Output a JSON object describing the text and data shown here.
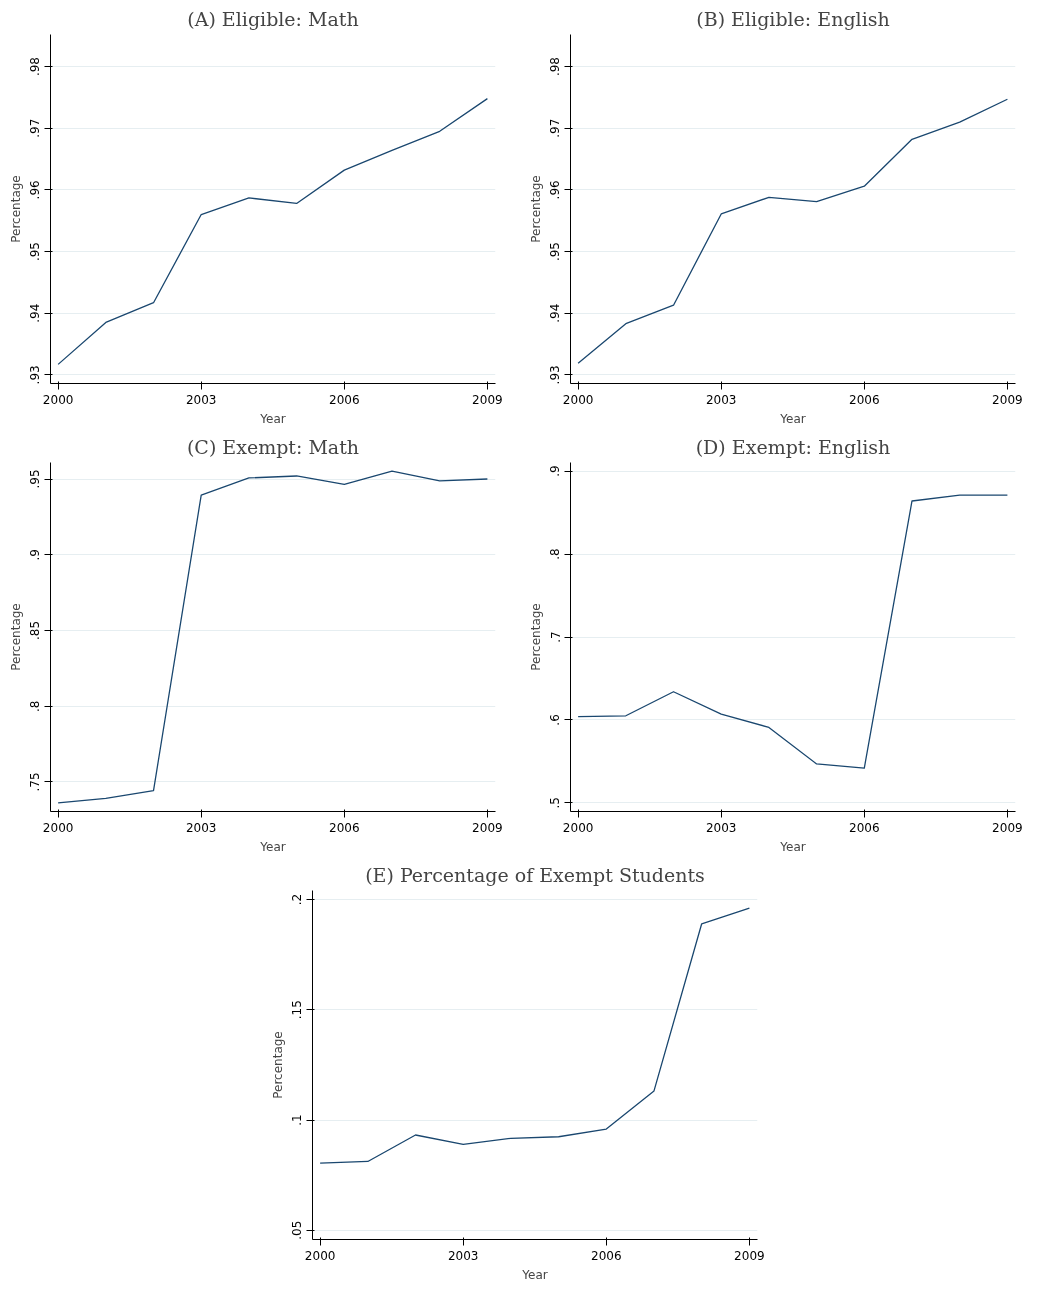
{
  "chart_data": [
    {
      "type": "line",
      "title": "(A) Eligible: Math",
      "xlabel": "Year",
      "ylabel": "Percentage",
      "x": [
        2000,
        2001,
        2002,
        2003,
        2004,
        2005,
        2006,
        2007,
        2008,
        2009
      ],
      "values": [
        0.9317,
        0.9385,
        0.9417,
        0.956,
        0.9587,
        0.9578,
        0.9632,
        0.9664,
        0.9695,
        0.9748
      ],
      "color": "#1a476f",
      "xlim": [
        1999.84,
        2009.17
      ],
      "ylim": [
        0.9286,
        0.9852
      ],
      "xticks": [
        2000,
        2003,
        2006,
        2009
      ],
      "yticks": [
        {
          "value": 0.93,
          "label": ".93"
        },
        {
          "value": 0.94,
          "label": ".94"
        },
        {
          "value": 0.95,
          "label": ".95"
        },
        {
          "value": 0.96,
          "label": ".96"
        },
        {
          "value": 0.97,
          "label": ".97"
        },
        {
          "value": 0.98,
          "label": ".98"
        }
      ],
      "grid": "y"
    },
    {
      "type": "line",
      "title": "(B) Eligible: English",
      "xlabel": "Year",
      "ylabel": "Percentage",
      "x": [
        2000,
        2001,
        2002,
        2003,
        2004,
        2005,
        2006,
        2007,
        2008,
        2009
      ],
      "values": [
        0.9319,
        0.9383,
        0.9413,
        0.9561,
        0.9588,
        0.9581,
        0.9606,
        0.9682,
        0.971,
        0.9747
      ],
      "color": "#1a476f",
      "xlim": [
        1999.84,
        2009.17
      ],
      "ylim": [
        0.9286,
        0.9852
      ],
      "xticks": [
        2000,
        2003,
        2006,
        2009
      ],
      "yticks": [
        {
          "value": 0.93,
          "label": ".93"
        },
        {
          "value": 0.94,
          "label": ".94"
        },
        {
          "value": 0.95,
          "label": ".95"
        },
        {
          "value": 0.96,
          "label": ".96"
        },
        {
          "value": 0.97,
          "label": ".97"
        },
        {
          "value": 0.98,
          "label": ".98"
        }
      ],
      "grid": "y"
    },
    {
      "type": "line",
      "title": "(C) Exempt: Math",
      "xlabel": "Year",
      "ylabel": "Percentage",
      "x": [
        2000,
        2001,
        2002,
        2003,
        2004,
        2005,
        2006,
        2007,
        2008,
        2009
      ],
      "values": [
        0.7362,
        0.7392,
        0.7443,
        0.9394,
        0.9507,
        0.952,
        0.9465,
        0.9552,
        0.9488,
        0.95
      ],
      "color": "#1a476f",
      "xlim": [
        1999.84,
        2009.17
      ],
      "ylim": [
        0.7305,
        0.9609
      ],
      "xticks": [
        2000,
        2003,
        2006,
        2009
      ],
      "yticks": [
        {
          "value": 0.75,
          "label": ".75"
        },
        {
          "value": 0.8,
          "label": ".8"
        },
        {
          "value": 0.85,
          "label": ".85"
        },
        {
          "value": 0.9,
          "label": ".9"
        },
        {
          "value": 0.95,
          "label": ".95"
        }
      ],
      "grid": "y"
    },
    {
      "type": "line",
      "title": "(D) Exempt: English",
      "xlabel": "Year",
      "ylabel": "Percentage",
      "x": [
        2000,
        2001,
        2002,
        2003,
        2004,
        2005,
        2006,
        2007,
        2008,
        2009
      ],
      "values": [
        0.604,
        0.605,
        0.634,
        0.607,
        0.591,
        0.547,
        0.542,
        0.864,
        0.871,
        0.871
      ],
      "color": "#1a476f",
      "xlim": [
        1999.84,
        2009.17
      ],
      "ylim": [
        0.4896,
        0.9104
      ],
      "xticks": [
        2000,
        2003,
        2006,
        2009
      ],
      "yticks": [
        {
          "value": 0.5,
          "label": ".5"
        },
        {
          "value": 0.6,
          "label": ".6"
        },
        {
          "value": 0.7,
          "label": ".7"
        },
        {
          "value": 0.8,
          "label": ".8"
        },
        {
          "value": 0.9,
          "label": ".9"
        }
      ],
      "grid": "y"
    },
    {
      "type": "line",
      "title": "(E) Percentage of Exempt Students",
      "xlabel": "Year",
      "ylabel": "Percentage",
      "x": [
        2000,
        2001,
        2002,
        2003,
        2004,
        2005,
        2006,
        2007,
        2008,
        2009
      ],
      "values": [
        0.0804,
        0.0812,
        0.0932,
        0.0889,
        0.0917,
        0.0924,
        0.0959,
        0.1132,
        0.189,
        0.1961
      ],
      "color": "#1a476f",
      "xlim": [
        1999.84,
        2009.17
      ],
      "ylim": [
        0.0458,
        0.2041
      ],
      "xticks": [
        2000,
        2003,
        2006,
        2009
      ],
      "yticks": [
        {
          "value": 0.05,
          "label": ".05"
        },
        {
          "value": 0.1,
          "label": ".1"
        },
        {
          "value": 0.15,
          "label": ".15"
        },
        {
          "value": 0.2,
          "label": ".2"
        }
      ],
      "grid": "y"
    }
  ]
}
